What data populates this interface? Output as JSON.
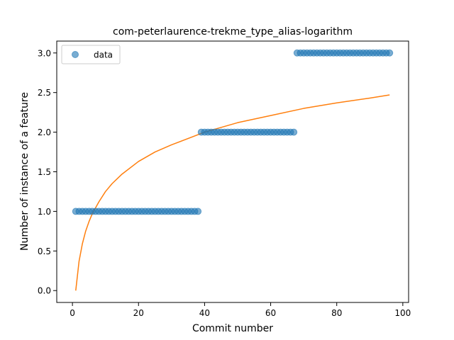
{
  "chart_data": {
    "type": "scatter",
    "title": "com-peterlaurence-trekme_type_alias-logarithm",
    "xlabel": "Commit number",
    "ylabel": "Number of instance of a feature",
    "xlim": [
      -4.75,
      101.75
    ],
    "ylim": [
      -0.15,
      3.15
    ],
    "xticks": [
      0,
      20,
      40,
      60,
      80,
      100
    ],
    "yticks": [
      0.0,
      0.5,
      1.0,
      1.5,
      2.0,
      2.5,
      3.0
    ],
    "xtick_labels": [
      "0",
      "20",
      "40",
      "60",
      "80",
      "100"
    ],
    "ytick_labels": [
      "0.0",
      "0.5",
      "1.0",
      "1.5",
      "2.0",
      "2.5",
      "3.0"
    ],
    "legend": {
      "position": "top-left",
      "entries": [
        "data"
      ]
    },
    "grid": false,
    "series": [
      {
        "name": "data",
        "kind": "scatter",
        "color": "#1f77b4",
        "segments": [
          {
            "x_start": 1,
            "x_end": 38,
            "y": 1
          },
          {
            "x_start": 39,
            "x_end": 67,
            "y": 2
          },
          {
            "x_start": 68,
            "x_end": 96,
            "y": 3
          }
        ]
      },
      {
        "kind": "line",
        "color": "#ff7f0e",
        "x": [
          1,
          2,
          3,
          4,
          5,
          6,
          8,
          10,
          12,
          15,
          20,
          25,
          30,
          40,
          50,
          60,
          70,
          80,
          90,
          96
        ],
        "y": [
          0.0,
          0.37,
          0.59,
          0.75,
          0.87,
          0.97,
          1.12,
          1.25,
          1.35,
          1.47,
          1.63,
          1.75,
          1.84,
          2.0,
          2.12,
          2.21,
          2.3,
          2.37,
          2.43,
          2.47
        ]
      }
    ]
  }
}
